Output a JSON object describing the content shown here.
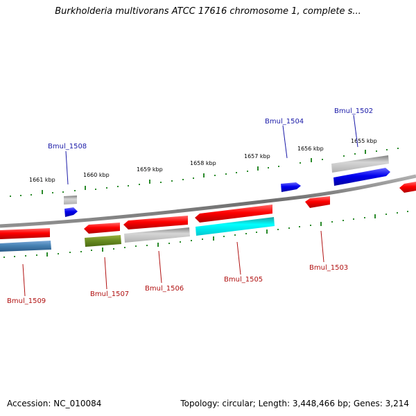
{
  "title": "Burkholderia multivorans ATCC 17616 chromosome 1, complete s...",
  "footer": {
    "accession": "Accession: NC_010084",
    "summary": "Topology: circular; Length: 3,448,466 bp; Genes: 3,214"
  },
  "colors": {
    "backbone": "#808080",
    "tick": "#2a8a2a",
    "label_forward": "#1a1aa8",
    "label_reverse": "#b01010"
  },
  "ticks": [
    "1655 kbp",
    "1656 kbp",
    "1657 kbp",
    "1658 kbp",
    "1659 kbp",
    "1660 kbp",
    "1661 kbp"
  ],
  "genes": [
    {
      "name": "Bmul_1502",
      "strand": "forward"
    },
    {
      "name": "Bmul_1503",
      "strand": "reverse"
    },
    {
      "name": "Bmul_1504",
      "strand": "forward"
    },
    {
      "name": "Bmul_1505",
      "strand": "reverse"
    },
    {
      "name": "Bmul_1506",
      "strand": "reverse"
    },
    {
      "name": "Bmul_1507",
      "strand": "reverse"
    },
    {
      "name": "Bmul_1508",
      "strand": "forward"
    },
    {
      "name": "Bmul_1509",
      "strand": "reverse"
    }
  ]
}
